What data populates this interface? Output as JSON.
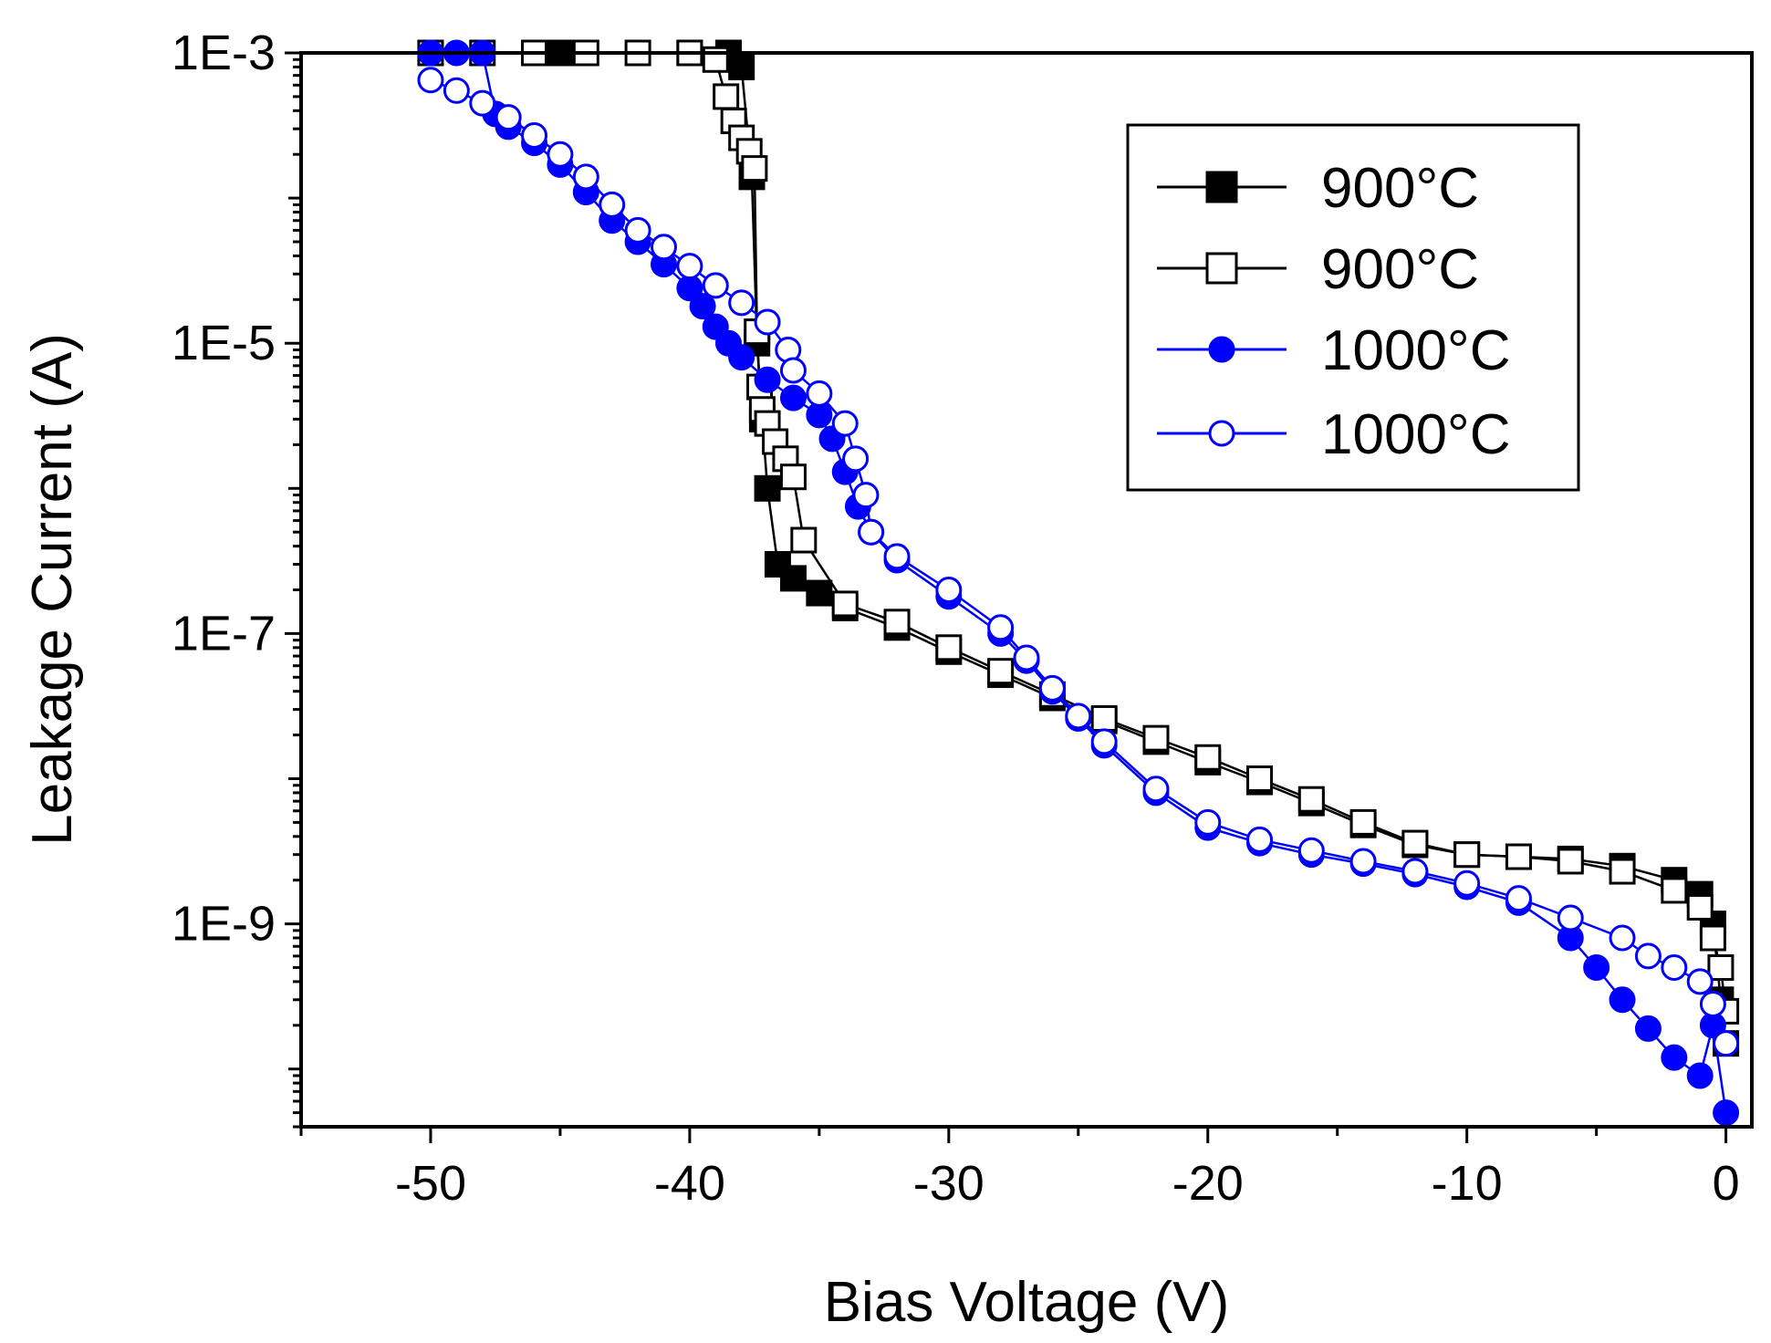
{
  "chart_data": {
    "type": "scatter",
    "title": "",
    "xlabel": "Bias Voltage (V)",
    "ylabel": "Leakage Current (A)",
    "xscale": "linear",
    "yscale": "log",
    "xlim": [
      -55,
      1
    ],
    "ylim": [
      4e-11,
      0.001
    ],
    "x_ticks": [
      -50,
      -40,
      -30,
      -20,
      -10,
      0
    ],
    "x_tick_labels": [
      "-50",
      "-40",
      "-30",
      "-20",
      "-10",
      "0"
    ],
    "y_ticks": [
      0.001,
      1e-05,
      1e-07,
      1e-09
    ],
    "y_tick_labels": [
      "1E-3",
      "1E-5",
      "1E-7",
      "1E-9"
    ],
    "grid": false,
    "legend_position": "top-right",
    "series": [
      {
        "name": "900°C",
        "marker": "square-filled",
        "color": "#000000",
        "x": [
          -50,
          -45,
          -40,
          -38.5,
          -38,
          -37.6,
          -37.4,
          -37.2,
          -37,
          -36.6,
          -36,
          -35,
          -34,
          -32,
          -30,
          -28,
          -26,
          -24,
          -22,
          -20,
          -18,
          -16,
          -14,
          -12,
          -10,
          -8,
          -6,
          -4,
          -2,
          -1,
          -0.5,
          -0.2,
          0
        ],
        "y": [
          0.001,
          0.001,
          0.001,
          0.001,
          0.0008,
          0.00014,
          1e-05,
          3e-06,
          1e-06,
          3e-07,
          2.4e-07,
          1.9e-07,
          1.5e-07,
          1.1e-07,
          7.5e-08,
          5.2e-08,
          3.6e-08,
          2.5e-08,
          1.8e-08,
          1.3e-08,
          9.5e-09,
          6.8e-09,
          4.8e-09,
          3.5e-09,
          3e-09,
          2.9e-09,
          2.8e-09,
          2.5e-09,
          2e-09,
          1.6e-09,
          1e-09,
          3e-10,
          1.5e-10
        ]
      },
      {
        "name": "900°C",
        "marker": "square-open",
        "color": "#000000",
        "x": [
          -50,
          -48,
          -46,
          -44,
          -42,
          -40,
          -39,
          -38.6,
          -38.3,
          -38,
          -37.7,
          -37.5,
          -37.4,
          -37.3,
          -37.2,
          -37,
          -36.7,
          -36.3,
          -36,
          -35.6,
          -34,
          -32,
          -30,
          -28,
          -26,
          -24,
          -22,
          -20,
          -18,
          -16,
          -14,
          -12,
          -10,
          -8,
          -6,
          -4,
          -2,
          -1,
          -0.5,
          -0.2,
          0
        ],
        "y": [
          0.001,
          0.001,
          0.001,
          0.001,
          0.001,
          0.001,
          0.0009,
          0.0005,
          0.00034,
          0.00026,
          0.00021,
          0.00016,
          1.2e-05,
          5e-06,
          3.5e-06,
          2.8e-06,
          2.1e-06,
          1.6e-06,
          1.2e-06,
          4.4e-07,
          1.6e-07,
          1.2e-07,
          8e-08,
          5.5e-08,
          3.8e-08,
          2.6e-08,
          1.9e-08,
          1.4e-08,
          1e-08,
          7.2e-09,
          5e-09,
          3.6e-09,
          3e-09,
          2.9e-09,
          2.7e-09,
          2.3e-09,
          1.7e-09,
          1.3e-09,
          8e-10,
          5e-10,
          2.5e-10
        ]
      },
      {
        "name": "1000°C",
        "marker": "circle-filled",
        "color": "#0000ff",
        "x": [
          -50,
          -49,
          -48,
          -47.5,
          -47,
          -46,
          -45,
          -44,
          -43,
          -42,
          -41,
          -40,
          -39.5,
          -39,
          -38.5,
          -38,
          -37,
          -36,
          -35,
          -34.5,
          -34,
          -33.5,
          -33,
          -32,
          -30,
          -28,
          -27,
          -26,
          -25,
          -24,
          -22,
          -20,
          -18,
          -16,
          -14,
          -12,
          -10,
          -8,
          -6,
          -5,
          -4,
          -3,
          -2,
          -1,
          -0.5,
          0
        ],
        "y": [
          0.001,
          0.001,
          0.001,
          0.00038,
          0.00031,
          0.00024,
          0.00017,
          0.00011,
          7e-05,
          5e-05,
          3.5e-05,
          2.4e-05,
          1.8e-05,
          1.3e-05,
          1e-05,
          8e-06,
          5.6e-06,
          4.2e-06,
          3.2e-06,
          2.2e-06,
          1.3e-06,
          7.5e-07,
          5e-07,
          3.2e-07,
          1.8e-07,
          1e-07,
          6.5e-08,
          4e-08,
          2.6e-08,
          1.7e-08,
          8e-09,
          4.6e-09,
          3.6e-09,
          3e-09,
          2.6e-09,
          2.2e-09,
          1.8e-09,
          1.4e-09,
          8e-10,
          5e-10,
          3e-10,
          1.9e-10,
          1.2e-10,
          9e-11,
          2e-10,
          5e-11
        ]
      },
      {
        "name": "1000°C",
        "marker": "circle-open",
        "color": "#0000ff",
        "x": [
          -50,
          -49,
          -48,
          -47,
          -46,
          -45,
          -44,
          -43,
          -42,
          -41,
          -40,
          -39,
          -38,
          -37,
          -36.2,
          -36,
          -35,
          -34,
          -33.6,
          -33.2,
          -33,
          -32,
          -30,
          -28,
          -27,
          -26,
          -25,
          -24,
          -22,
          -20,
          -18,
          -16,
          -14,
          -12,
          -10,
          -8,
          -6,
          -4,
          -3,
          -2,
          -1,
          -0.5,
          0
        ],
        "y": [
          0.00065,
          0.00055,
          0.00045,
          0.00036,
          0.00027,
          0.0002,
          0.00014,
          9e-05,
          6e-05,
          4.6e-05,
          3.4e-05,
          2.5e-05,
          1.9e-05,
          1.4e-05,
          9e-06,
          6.5e-06,
          4.5e-06,
          2.8e-06,
          1.6e-06,
          9e-07,
          5e-07,
          3.4e-07,
          2e-07,
          1.1e-07,
          6.8e-08,
          4.2e-08,
          2.7e-08,
          1.8e-08,
          8.5e-09,
          5e-09,
          3.8e-09,
          3.2e-09,
          2.7e-09,
          2.3e-09,
          1.9e-09,
          1.5e-09,
          1.1e-09,
          8e-10,
          6e-10,
          5e-10,
          4e-10,
          2.8e-10,
          1.5e-10
        ]
      }
    ]
  }
}
